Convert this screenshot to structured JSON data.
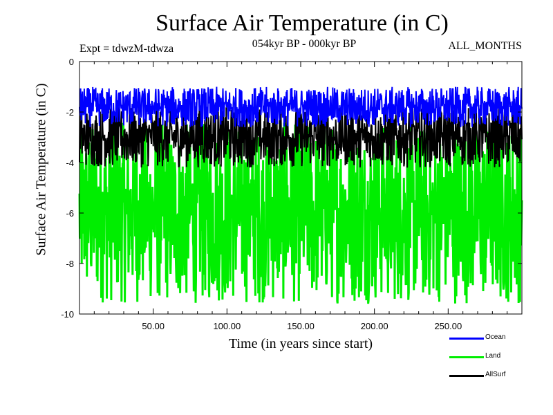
{
  "chart_data": {
    "type": "line",
    "title": "Surface Air Temperature (in C)",
    "subtitle_left": "Expt = tdwzM-tdwza",
    "subtitle_center": "054kyr BP - 000kyr BP",
    "subtitle_right": "ALL_MONTHS",
    "xlabel": "Time (in years since start)",
    "ylabel": "Surface Air Temperature (in C)",
    "xlim": [
      0,
      300
    ],
    "ylim": [
      -10,
      0
    ],
    "x_ticks": [
      "50.00",
      "100.00",
      "150.00",
      "200.00",
      "250.00"
    ],
    "y_ticks": [
      "0",
      "-2",
      "-4",
      "-6",
      "-8",
      "-10"
    ],
    "legend_position": "bottom-right",
    "series": [
      {
        "name": "Ocean",
        "color": "#0000ff",
        "mean": -1.8,
        "min": -2.5,
        "max": -0.9
      },
      {
        "name": "Land",
        "color": "#00ee00",
        "mean": -6.0,
        "min": -9.7,
        "max": -2.5
      },
      {
        "name": "AllSurf",
        "color": "#000000",
        "mean": -3.0,
        "min": -4.3,
        "max": -1.9
      }
    ]
  }
}
